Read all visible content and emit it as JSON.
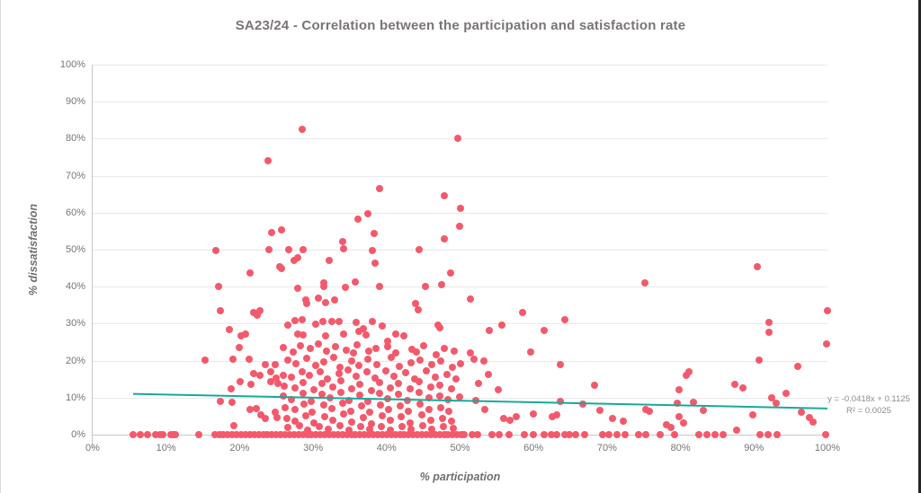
{
  "chart_data": {
    "type": "scatter",
    "title": "SA23/24 - Correlation between the participation and satisfaction rate",
    "xlabel": "% participation",
    "ylabel": "% dissatisfaction",
    "xlim": [
      0,
      100
    ],
    "ylim": [
      0,
      100
    ],
    "x_ticks": [
      "0%",
      "10%",
      "20%",
      "30%",
      "40%",
      "50%",
      "60%",
      "70%",
      "80%",
      "90%",
      "100%"
    ],
    "y_ticks": [
      "0%",
      "10%",
      "20%",
      "30%",
      "40%",
      "50%",
      "60%",
      "70%",
      "80%",
      "90%",
      "100%"
    ],
    "grid": "horizontal-only",
    "legend": "none",
    "point_color": "#f4596b",
    "trendline": {
      "equation": "y = -0.0418x + 0.1125",
      "r2": "R² = 0.0025",
      "slope": -0.0418,
      "intercept": 0.1125,
      "color": "#18a99b",
      "x_start": 5.5,
      "x_end": 100
    },
    "points": [
      [
        28.5,
        82.5
      ],
      [
        49.7,
        80.2
      ],
      [
        23.9,
        74.0
      ],
      [
        39.0,
        66.5
      ],
      [
        47.8,
        64.5
      ],
      [
        37.5,
        59.6
      ],
      [
        36.1,
        58.3
      ],
      [
        50.1,
        61.1
      ],
      [
        49.9,
        56.2
      ],
      [
        24.4,
        54.6
      ],
      [
        25.7,
        55.4
      ],
      [
        38.3,
        54.4
      ],
      [
        34.0,
        52.3
      ],
      [
        47.8,
        52.9
      ],
      [
        16.8,
        49.7
      ],
      [
        24.0,
        49.9
      ],
      [
        26.7,
        49.9
      ],
      [
        28.7,
        50.0
      ],
      [
        34.1,
        50.3
      ],
      [
        38.1,
        49.8
      ],
      [
        44.4,
        50.0
      ],
      [
        21.4,
        43.7
      ],
      [
        25.4,
        45.5
      ],
      [
        25.7,
        45.0
      ],
      [
        27.4,
        47.1
      ],
      [
        27.9,
        47.7
      ],
      [
        32.2,
        47.0
      ],
      [
        38.4,
        46.4
      ],
      [
        48.7,
        43.6
      ],
      [
        90.5,
        45.3
      ],
      [
        17.1,
        40.1
      ],
      [
        27.9,
        39.6
      ],
      [
        31.4,
        41.0
      ],
      [
        31.5,
        40.0
      ],
      [
        34.4,
        39.9
      ],
      [
        35.8,
        41.3
      ],
      [
        39.0,
        40.1
      ],
      [
        45.3,
        40.1
      ],
      [
        47.5,
        40.5
      ],
      [
        75.1,
        41.0
      ],
      [
        29.0,
        36.5
      ],
      [
        29.1,
        35.4
      ],
      [
        30.7,
        36.8
      ],
      [
        31.7,
        35.7
      ],
      [
        32.9,
        36.4
      ],
      [
        43.9,
        35.4
      ],
      [
        44.3,
        33.7
      ],
      [
        51.4,
        36.6
      ],
      [
        100.0,
        33.4
      ],
      [
        17.4,
        33.4
      ],
      [
        21.9,
        33.0
      ],
      [
        22.4,
        32.2
      ],
      [
        22.8,
        33.6
      ],
      [
        58.5,
        33.1
      ],
      [
        64.3,
        31.0
      ],
      [
        92.1,
        30.3
      ],
      [
        18.6,
        28.5
      ],
      [
        20.2,
        26.7
      ],
      [
        20.8,
        27.2
      ],
      [
        26.6,
        29.5
      ],
      [
        27.6,
        30.9
      ],
      [
        28.5,
        31.0
      ],
      [
        27.9,
        27.3
      ],
      [
        28.7,
        26.9
      ],
      [
        30.4,
        29.9
      ],
      [
        31.3,
        30.5
      ],
      [
        32.6,
        30.7
      ],
      [
        31.7,
        26.7
      ],
      [
        33.5,
        30.5
      ],
      [
        34.1,
        27.1
      ],
      [
        35.9,
        30.3
      ],
      [
        36.2,
        27.8
      ],
      [
        36.9,
        28.7
      ],
      [
        37.2,
        26.9
      ],
      [
        38.1,
        30.5
      ],
      [
        39.4,
        29.3
      ],
      [
        40.2,
        25.2
      ],
      [
        41.3,
        27.3
      ],
      [
        42.4,
        26.8
      ],
      [
        47.0,
        29.7
      ],
      [
        47.3,
        28.9
      ],
      [
        54.0,
        28.2
      ],
      [
        55.7,
        29.6
      ],
      [
        61.5,
        28.2
      ],
      [
        92.1,
        27.7
      ],
      [
        99.9,
        24.5
      ],
      [
        15.3,
        20.2
      ],
      [
        19.1,
        20.5
      ],
      [
        19.9,
        23.5
      ],
      [
        21.3,
        20.3
      ],
      [
        21.9,
        16.6
      ],
      [
        22.8,
        16.0
      ],
      [
        23.5,
        18.9
      ],
      [
        24.2,
        17.1
      ],
      [
        25.0,
        15.4
      ],
      [
        24.8,
        18.9
      ],
      [
        25.2,
        13.9
      ],
      [
        24.2,
        14.2
      ],
      [
        18.8,
        12.4
      ],
      [
        20.1,
        14.3
      ],
      [
        21.6,
        13.7
      ],
      [
        17.4,
        9.1
      ],
      [
        19.0,
        8.7
      ],
      [
        21.4,
        6.8
      ],
      [
        22.3,
        7.0
      ],
      [
        22.9,
        5.3
      ],
      [
        23.5,
        4.4
      ],
      [
        24.9,
        6.1
      ],
      [
        25.1,
        4.5
      ],
      [
        19.2,
        2.4
      ],
      [
        52.5,
        13.8
      ],
      [
        55.2,
        12.1
      ],
      [
        63.6,
        19.0
      ],
      [
        68.3,
        13.3
      ],
      [
        52.1,
        9.3
      ],
      [
        53.4,
        6.9
      ],
      [
        63.7,
        9.1
      ],
      [
        66.7,
        8.2
      ],
      [
        55.9,
        4.4
      ],
      [
        56.8,
        3.8
      ],
      [
        57.7,
        4.9
      ],
      [
        60.0,
        5.6
      ],
      [
        62.5,
        4.9
      ],
      [
        63.2,
        5.3
      ],
      [
        69.0,
        6.6
      ],
      [
        70.8,
        4.4
      ],
      [
        72.2,
        3.6
      ],
      [
        75.3,
        6.9
      ],
      [
        53.8,
        16.2
      ],
      [
        51.4,
        22.0
      ],
      [
        51.9,
        20.4
      ],
      [
        53.2,
        19.8
      ],
      [
        59.6,
        22.3
      ],
      [
        90.7,
        20.2
      ],
      [
        96.0,
        18.5
      ],
      [
        80.8,
        15.9
      ],
      [
        81.1,
        16.9
      ],
      [
        87.4,
        13.7
      ],
      [
        88.5,
        12.7
      ],
      [
        79.8,
        12.1
      ],
      [
        92.4,
        9.9
      ],
      [
        93.0,
        8.6
      ],
      [
        94.4,
        11.1
      ],
      [
        79.5,
        8.5
      ],
      [
        81.8,
        8.7
      ],
      [
        83.1,
        6.6
      ],
      [
        75.8,
        6.4
      ],
      [
        79.8,
        4.8
      ],
      [
        80.4,
        3.2
      ],
      [
        78.1,
        2.6
      ],
      [
        78.7,
        2.0
      ],
      [
        89.8,
        5.3
      ],
      [
        96.5,
        6.1
      ],
      [
        97.5,
        4.6
      ],
      [
        98.1,
        3.4
      ],
      [
        87.6,
        1.2
      ],
      [
        26.0,
        23.6
      ],
      [
        28.3,
        24.1
      ],
      [
        29.6,
        23.2
      ],
      [
        30.7,
        24.4
      ],
      [
        33.1,
        23.8
      ],
      [
        34.5,
        22.9
      ],
      [
        36.0,
        24.2
      ],
      [
        38.6,
        23.3
      ],
      [
        40.1,
        23.9
      ],
      [
        43.4,
        23.1
      ],
      [
        45.1,
        24.0
      ],
      [
        47.9,
        23.4
      ],
      [
        27.3,
        22.4
      ],
      [
        31.8,
        22.6
      ],
      [
        35.5,
        22.1
      ],
      [
        37.6,
        22.5
      ],
      [
        41.2,
        22.0
      ],
      [
        44.1,
        22.3
      ],
      [
        46.7,
        21.7
      ],
      [
        49.2,
        22.6
      ],
      [
        26.5,
        20.1
      ],
      [
        27.7,
        19.1
      ],
      [
        29.1,
        20.7
      ],
      [
        30.3,
        18.7
      ],
      [
        31.4,
        19.7
      ],
      [
        32.8,
        20.9
      ],
      [
        33.7,
        18.3
      ],
      [
        35.2,
        20.0
      ],
      [
        36.2,
        18.6
      ],
      [
        37.5,
        20.4
      ],
      [
        38.7,
        19.0
      ],
      [
        40.6,
        20.8
      ],
      [
        41.7,
        18.4
      ],
      [
        43.3,
        19.4
      ],
      [
        44.5,
        20.2
      ],
      [
        46.2,
        18.9
      ],
      [
        47.4,
        19.9
      ],
      [
        48.9,
        18.2
      ],
      [
        50.1,
        19.2
      ],
      [
        25.9,
        16.1
      ],
      [
        27.0,
        15.6
      ],
      [
        28.5,
        17.0
      ],
      [
        29.5,
        15.9
      ],
      [
        31.0,
        16.9
      ],
      [
        32.0,
        15.1
      ],
      [
        33.5,
        16.4
      ],
      [
        34.8,
        17.4
      ],
      [
        35.9,
        15.7
      ],
      [
        37.3,
        17.0
      ],
      [
        38.4,
        15.2
      ],
      [
        39.9,
        17.2
      ],
      [
        41.0,
        15.8
      ],
      [
        42.6,
        16.7
      ],
      [
        43.8,
        15.1
      ],
      [
        45.4,
        17.3
      ],
      [
        46.6,
        15.5
      ],
      [
        48.2,
        16.3
      ],
      [
        49.5,
        15.0
      ],
      [
        26.1,
        13.2
      ],
      [
        27.6,
        12.7
      ],
      [
        28.7,
        14.1
      ],
      [
        30.1,
        12.1
      ],
      [
        31.2,
        13.9
      ],
      [
        32.7,
        12.8
      ],
      [
        33.8,
        14.5
      ],
      [
        35.3,
        12.3
      ],
      [
        36.4,
        13.7
      ],
      [
        37.9,
        12.0
      ],
      [
        39.0,
        14.0
      ],
      [
        40.5,
        12.6
      ],
      [
        41.6,
        13.8
      ],
      [
        43.2,
        12.4
      ],
      [
        44.4,
        14.3
      ],
      [
        46.0,
        12.9
      ],
      [
        47.2,
        13.4
      ],
      [
        48.8,
        12.4
      ],
      [
        26.0,
        10.5
      ],
      [
        27.1,
        9.5
      ],
      [
        28.6,
        11.2
      ],
      [
        29.7,
        9.1
      ],
      [
        31.2,
        10.9
      ],
      [
        32.3,
        10.0
      ],
      [
        33.8,
        11.5
      ],
      [
        34.9,
        9.3
      ],
      [
        36.4,
        10.7
      ],
      [
        37.5,
        9.0
      ],
      [
        39.0,
        11.1
      ],
      [
        40.1,
        9.8
      ],
      [
        41.6,
        11.0
      ],
      [
        42.8,
        9.2
      ],
      [
        44.4,
        11.3
      ],
      [
        45.8,
        9.9
      ],
      [
        47.2,
        10.4
      ],
      [
        48.4,
        9.4
      ],
      [
        49.9,
        10.1
      ],
      [
        26.2,
        7.3
      ],
      [
        27.5,
        6.7
      ],
      [
        28.8,
        8.2
      ],
      [
        29.9,
        6.1
      ],
      [
        31.4,
        7.9
      ],
      [
        32.5,
        7.0
      ],
      [
        34.0,
        8.5
      ],
      [
        35.1,
        6.3
      ],
      [
        36.6,
        7.7
      ],
      [
        37.7,
        6.0
      ],
      [
        39.2,
        8.1
      ],
      [
        40.3,
        6.8
      ],
      [
        41.8,
        7.8
      ],
      [
        43.0,
        6.2
      ],
      [
        44.6,
        8.3
      ],
      [
        45.8,
        6.9
      ],
      [
        47.4,
        7.4
      ],
      [
        48.5,
        6.4
      ],
      [
        26.4,
        4.3
      ],
      [
        27.5,
        3.7
      ],
      [
        29.0,
        5.2
      ],
      [
        30.1,
        3.1
      ],
      [
        31.6,
        4.9
      ],
      [
        32.7,
        4.0
      ],
      [
        34.2,
        5.5
      ],
      [
        35.3,
        3.3
      ],
      [
        36.8,
        4.7
      ],
      [
        37.9,
        3.0
      ],
      [
        39.4,
        5.1
      ],
      [
        40.5,
        3.8
      ],
      [
        42.0,
        4.8
      ],
      [
        43.2,
        3.2
      ],
      [
        44.8,
        5.3
      ],
      [
        46.0,
        3.9
      ],
      [
        47.6,
        4.4
      ],
      [
        48.8,
        3.6
      ],
      [
        26.6,
        1.9
      ],
      [
        28.1,
        2.4
      ],
      [
        29.3,
        1.3
      ],
      [
        30.9,
        2.2
      ],
      [
        32.1,
        1.5
      ],
      [
        33.7,
        2.5
      ],
      [
        34.9,
        1.2
      ],
      [
        36.5,
        2.1
      ],
      [
        37.7,
        1.4
      ],
      [
        39.3,
        2.3
      ],
      [
        40.5,
        1.3
      ],
      [
        42.1,
        2.2
      ],
      [
        43.3,
        1.5
      ],
      [
        44.9,
        2.4
      ],
      [
        46.1,
        1.4
      ],
      [
        47.7,
        2.1
      ],
      [
        49.1,
        1.8
      ],
      [
        5.5,
        0
      ],
      [
        6.5,
        0
      ],
      [
        7.5,
        0
      ],
      [
        8.6,
        0
      ],
      [
        9.2,
        0
      ],
      [
        9.5,
        0
      ],
      [
        10.7,
        0
      ],
      [
        11.0,
        0
      ],
      [
        11.3,
        0
      ],
      [
        14.4,
        0
      ],
      [
        16.6,
        0
      ],
      [
        17.2,
        0
      ],
      [
        17.8,
        0
      ],
      [
        18.4,
        0
      ],
      [
        19.0,
        0
      ],
      [
        19.6,
        0
      ],
      [
        20.2,
        0
      ],
      [
        20.8,
        0
      ],
      [
        21.4,
        0
      ],
      [
        22.0,
        0
      ],
      [
        22.6,
        0
      ],
      [
        23.2,
        0
      ],
      [
        23.8,
        0
      ],
      [
        24.4,
        0
      ],
      [
        25.0,
        0
      ],
      [
        25.6,
        0
      ],
      [
        26.2,
        0
      ],
      [
        26.8,
        0
      ],
      [
        27.4,
        0
      ],
      [
        28.0,
        0
      ],
      [
        28.6,
        0
      ],
      [
        29.2,
        0
      ],
      [
        29.8,
        0
      ],
      [
        30.4,
        0
      ],
      [
        31.0,
        0
      ],
      [
        31.6,
        0
      ],
      [
        32.2,
        0
      ],
      [
        32.8,
        0
      ],
      [
        33.4,
        0
      ],
      [
        34.0,
        0
      ],
      [
        34.6,
        0
      ],
      [
        35.2,
        0
      ],
      [
        35.8,
        0
      ],
      [
        36.4,
        0
      ],
      [
        37.0,
        0
      ],
      [
        37.6,
        0
      ],
      [
        38.2,
        0
      ],
      [
        38.8,
        0
      ],
      [
        39.4,
        0
      ],
      [
        40.0,
        0
      ],
      [
        40.6,
        0
      ],
      [
        41.2,
        0
      ],
      [
        41.8,
        0
      ],
      [
        42.4,
        0
      ],
      [
        43.0,
        0
      ],
      [
        43.6,
        0
      ],
      [
        44.2,
        0
      ],
      [
        44.8,
        0
      ],
      [
        45.4,
        0
      ],
      [
        46.0,
        0
      ],
      [
        46.6,
        0
      ],
      [
        47.2,
        0
      ],
      [
        47.8,
        0
      ],
      [
        48.4,
        0
      ],
      [
        49.0,
        0
      ],
      [
        49.6,
        0
      ],
      [
        50.2,
        0
      ],
      [
        50.6,
        0
      ],
      [
        51.6,
        0
      ],
      [
        52.4,
        0
      ],
      [
        54.3,
        0
      ],
      [
        55.3,
        0
      ],
      [
        56.7,
        0
      ],
      [
        58.8,
        0
      ],
      [
        60.0,
        0
      ],
      [
        61.4,
        0
      ],
      [
        62.4,
        0
      ],
      [
        63.2,
        0
      ],
      [
        64.3,
        0
      ],
      [
        64.9,
        0
      ],
      [
        65.7,
        0
      ],
      [
        66.9,
        0
      ],
      [
        69.4,
        0
      ],
      [
        70.2,
        0
      ],
      [
        71.4,
        0
      ],
      [
        72.4,
        0
      ],
      [
        74.3,
        0
      ],
      [
        75.3,
        0
      ],
      [
        77.2,
        0
      ],
      [
        79.2,
        0
      ],
      [
        82.5,
        0
      ],
      [
        83.6,
        0
      ],
      [
        84.7,
        0
      ],
      [
        85.8,
        0
      ],
      [
        90.8,
        0
      ],
      [
        91.9,
        0
      ],
      [
        93.1,
        0
      ],
      [
        99.8,
        0
      ]
    ]
  },
  "colors": {
    "title_text": "#7a7474",
    "tick_text": "#757575",
    "axis_title_text": "#6f6f6f",
    "gridline": "#e9e9e9",
    "spine": "#c6c6c6",
    "point": "#f4596b",
    "trendline": "#18a99b",
    "equation_text": "#8c8c8c",
    "window_right_border": "#262626"
  }
}
